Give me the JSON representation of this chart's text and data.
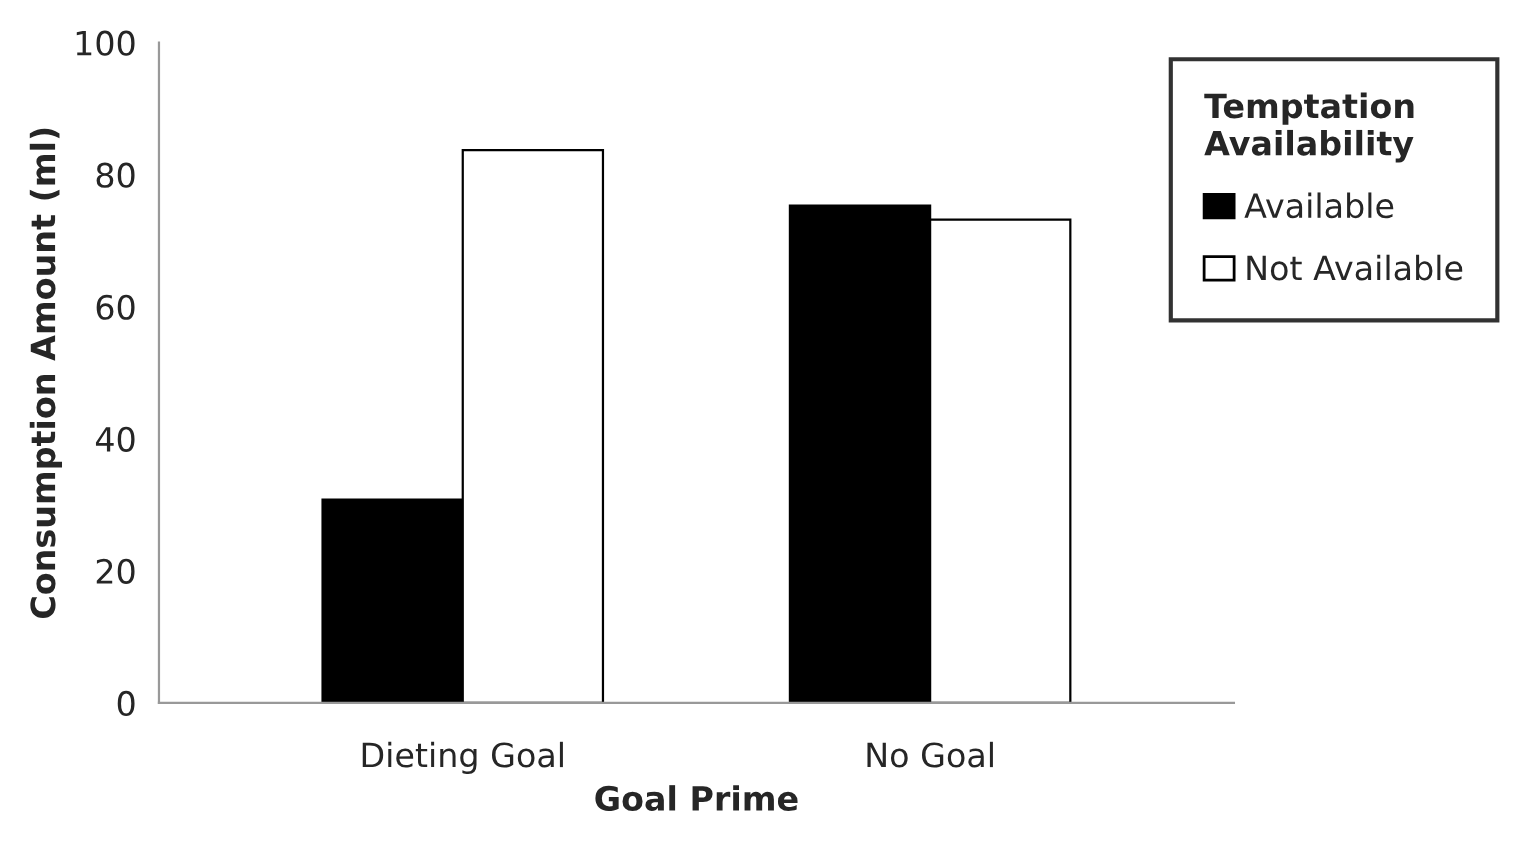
{
  "chart_data": {
    "type": "bar",
    "xlabel": "Goal Prime",
    "ylabel": "Consumption Amount (ml)",
    "legend_title": "Temptation\nAvailability",
    "categories": [
      "Dieting Goal",
      "No Goal"
    ],
    "series": [
      {
        "name": "Available",
        "color": "#000000",
        "values": [
          30.8,
          75.3
        ]
      },
      {
        "name": "Not Available",
        "color": "#ffffff",
        "values": [
          83.7,
          73.2
        ]
      }
    ],
    "ylim": [
      0,
      100
    ],
    "yticks": [
      0,
      20,
      40,
      60,
      80,
      100
    ],
    "grid": false,
    "legend": "right"
  }
}
